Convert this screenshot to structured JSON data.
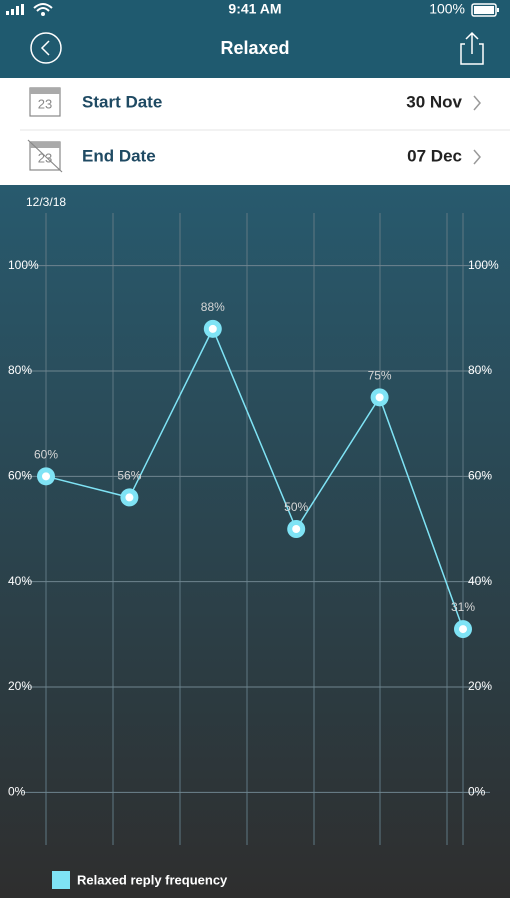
{
  "status_bar": {
    "time": "9:41 AM",
    "battery": "100%"
  },
  "header": {
    "title": "Relaxed"
  },
  "date_rows": [
    {
      "icon_day": "23",
      "label": "Start Date",
      "value": "30 Nov"
    },
    {
      "icon_day": "23",
      "label": "End Date",
      "value": "07 Dec"
    }
  ],
  "chart_data": {
    "type": "line",
    "date_label": "12/3/18",
    "categories": [
      null,
      null,
      null,
      null,
      null,
      null
    ],
    "series": [
      {
        "name": "Relaxed reply frequency",
        "color": "#7fe3f5",
        "values": [
          60,
          56,
          88,
          50,
          75,
          31
        ],
        "value_labels": [
          "60%",
          "56%",
          "88%",
          "50%",
          "75%",
          "31%"
        ]
      }
    ],
    "ylim": [
      -10,
      110
    ],
    "yticks": [
      {
        "value": 0,
        "label": "0%"
      },
      {
        "value": 20,
        "label": "20%"
      },
      {
        "value": 40,
        "label": "40%"
      },
      {
        "value": 60,
        "label": "60%"
      },
      {
        "value": 80,
        "label": "80%"
      },
      {
        "value": 100,
        "label": "100%"
      }
    ],
    "y2lim": [
      -10,
      110
    ],
    "y2ticks": [
      {
        "value": 0,
        "label": "0%"
      },
      {
        "value": 20,
        "label": "20%"
      },
      {
        "value": 40,
        "label": "40%"
      },
      {
        "value": 60,
        "label": "60%"
      },
      {
        "value": 80,
        "label": "80%"
      },
      {
        "value": 100,
        "label": "100%"
      }
    ],
    "grid": true,
    "legend": "bottom"
  }
}
